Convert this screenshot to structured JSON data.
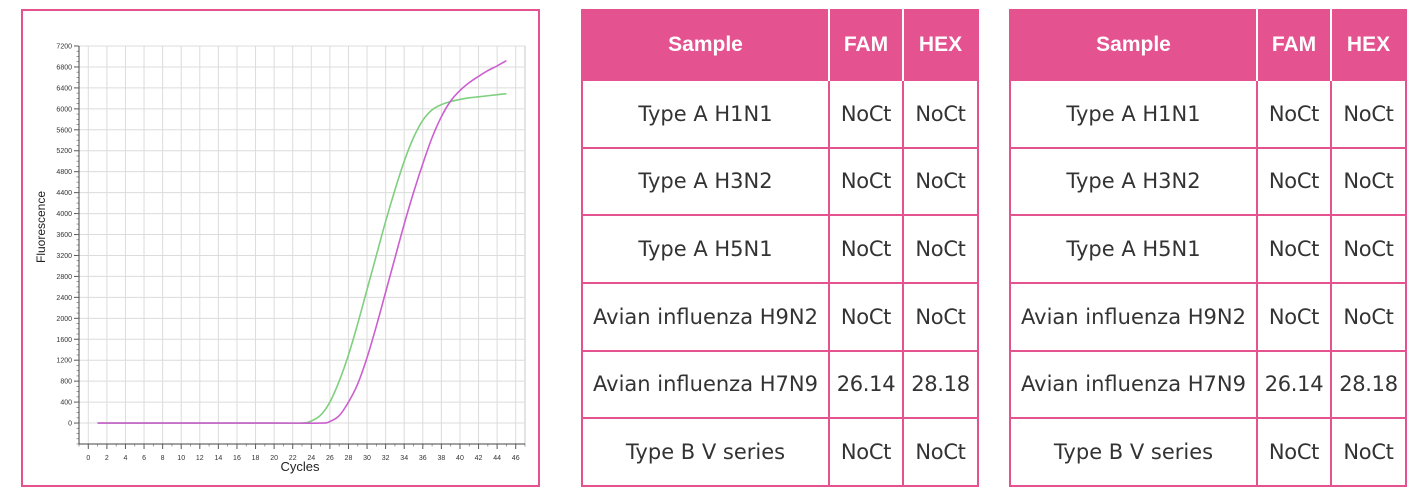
{
  "chart_data": {
    "type": "line",
    "xlabel": "Cycles",
    "ylabel": "Fluorescence",
    "xlim": [
      -1,
      47
    ],
    "ylim": [
      -400,
      7200
    ],
    "x_ticks": [
      0,
      2,
      4,
      6,
      8,
      10,
      12,
      14,
      16,
      18,
      20,
      22,
      24,
      26,
      28,
      30,
      32,
      34,
      36,
      38,
      40,
      42,
      44,
      46
    ],
    "y_ticks": [
      0,
      400,
      800,
      1200,
      1600,
      2000,
      2400,
      2800,
      3200,
      3600,
      4000,
      4400,
      4800,
      5200,
      5600,
      6000,
      6400,
      6800,
      7200
    ],
    "grid": true,
    "series": [
      {
        "color": "#7fcf7f",
        "x": [
          1,
          10,
          20,
          23,
          24,
          25,
          26,
          27,
          28,
          29,
          30,
          31,
          32,
          33,
          34,
          35,
          36,
          37,
          38,
          39,
          40,
          41,
          42,
          43,
          44,
          45
        ],
        "y": [
          0,
          0,
          0,
          0,
          40,
          150,
          400,
          800,
          1300,
          1900,
          2550,
          3200,
          3850,
          4450,
          5000,
          5450,
          5780,
          5980,
          6080,
          6140,
          6180,
          6210,
          6230,
          6250,
          6270,
          6290
        ]
      },
      {
        "color": "#cc5fcf",
        "x": [
          1,
          10,
          20,
          25,
          26,
          27,
          28,
          29,
          30,
          31,
          32,
          33,
          34,
          35,
          36,
          37,
          38,
          39,
          40,
          41,
          42,
          43,
          44,
          45
        ],
        "y": [
          0,
          0,
          0,
          0,
          30,
          140,
          400,
          750,
          1250,
          1850,
          2500,
          3150,
          3800,
          4400,
          4950,
          5450,
          5850,
          6150,
          6350,
          6500,
          6620,
          6730,
          6820,
          6920
        ]
      }
    ]
  },
  "tables": [
    {
      "headers": [
        "Sample",
        "FAM",
        "HEX"
      ],
      "rows": [
        [
          "Type A H1N1",
          "NoCt",
          "NoCt"
        ],
        [
          "Type A H3N2",
          "NoCt",
          "NoCt"
        ],
        [
          "Type A H5N1",
          "NoCt",
          "NoCt"
        ],
        [
          "Avian influenza H9N2",
          "NoCt",
          "NoCt"
        ],
        [
          "Avian influenza H7N9",
          "26.14",
          "28.18"
        ],
        [
          "Type B V series",
          "NoCt",
          "NoCt"
        ]
      ]
    },
    {
      "headers": [
        "Sample",
        "FAM",
        "HEX"
      ],
      "rows": [
        [
          "Type A H1N1",
          "NoCt",
          "NoCt"
        ],
        [
          "Type A H3N2",
          "NoCt",
          "NoCt"
        ],
        [
          "Type A H5N1",
          "NoCt",
          "NoCt"
        ],
        [
          "Avian influenza H9N2",
          "NoCt",
          "NoCt"
        ],
        [
          "Avian influenza H7N9",
          "26.14",
          "28.18"
        ],
        [
          "Type B V series",
          "NoCt",
          "NoCt"
        ]
      ]
    }
  ]
}
